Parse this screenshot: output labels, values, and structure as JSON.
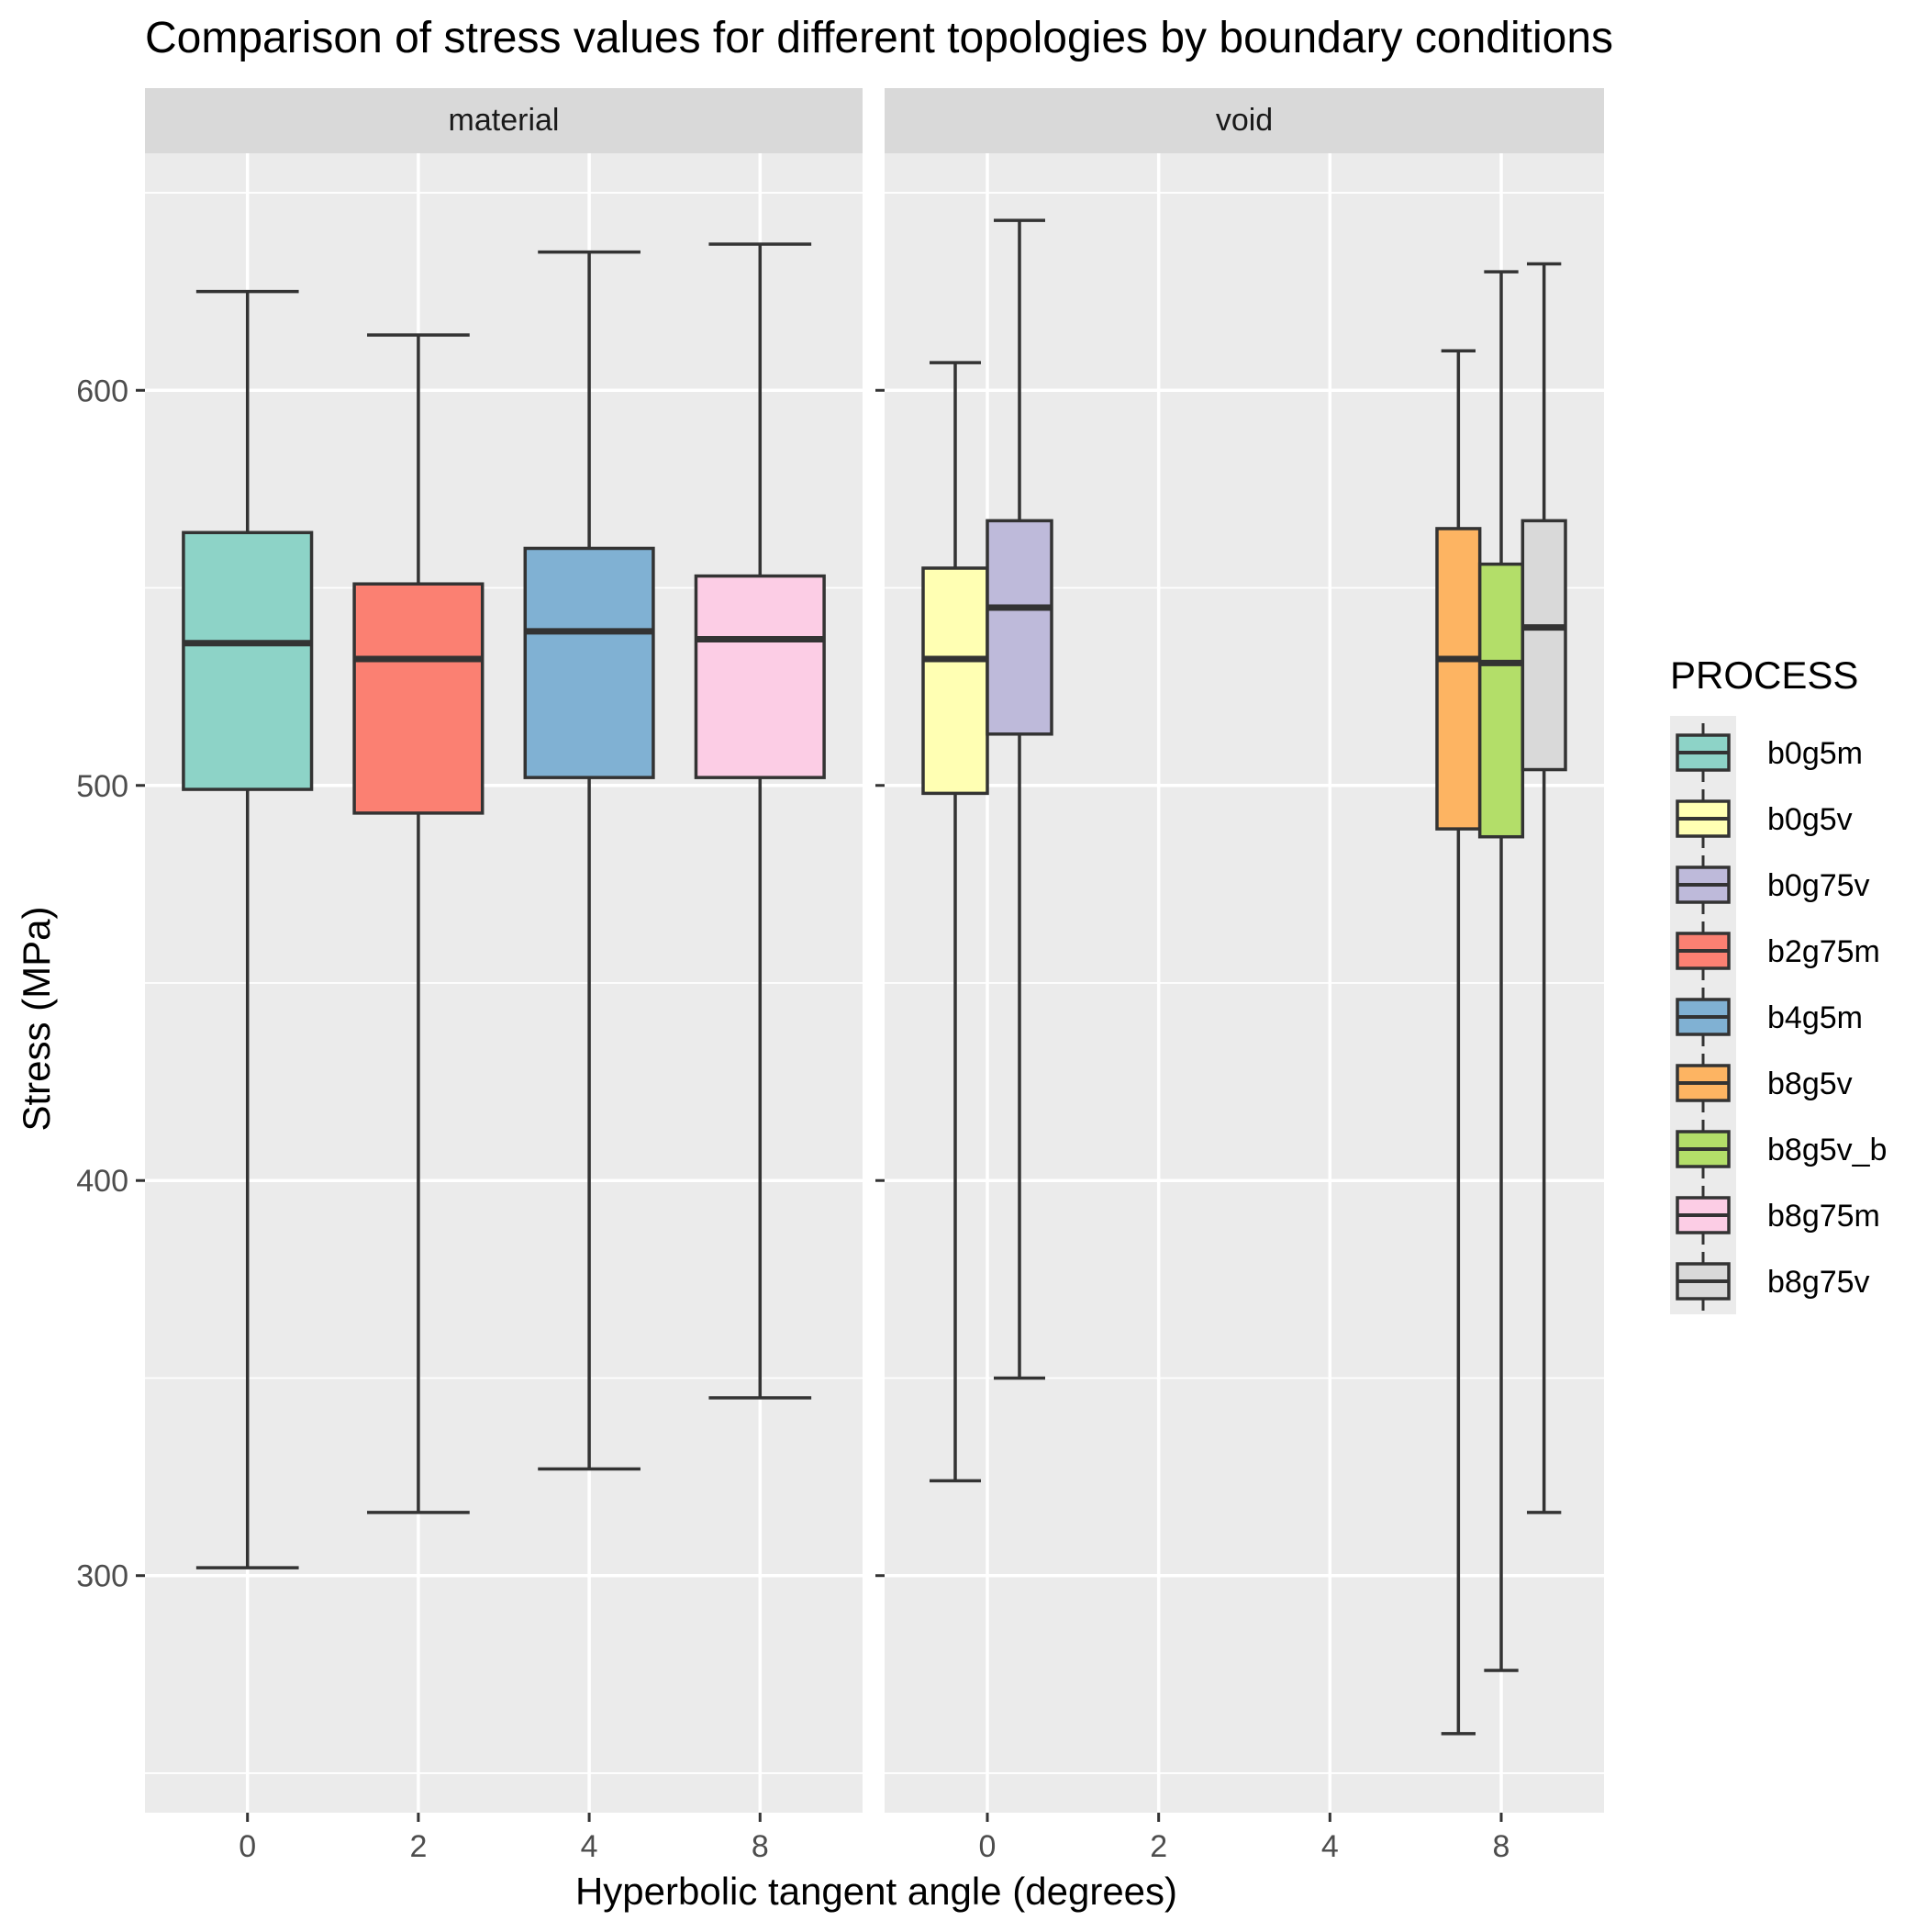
{
  "chart_data": {
    "type": "boxplot",
    "title": "Comparison of stress values for different topologies by boundary conditions",
    "xlabel": "Hyperbolic tangent angle (degrees)",
    "ylabel": "Stress (MPa)",
    "ylim": [
      240,
      660
    ],
    "yticks": [
      300,
      400,
      500,
      600
    ],
    "x_categories": [
      "0",
      "2",
      "4",
      "8"
    ],
    "grid": true,
    "legend": {
      "title": "PROCESS",
      "position": "right",
      "entries": [
        {
          "name": "b0g5m",
          "color": "#8DD3C7"
        },
        {
          "name": "b0g5v",
          "color": "#FFFFB3"
        },
        {
          "name": "b0g75v",
          "color": "#BEBADA"
        },
        {
          "name": "b2g75m",
          "color": "#FB8072"
        },
        {
          "name": "b4g5m",
          "color": "#80B1D3"
        },
        {
          "name": "b8g5v",
          "color": "#FDB462"
        },
        {
          "name": "b8g5v_b",
          "color": "#B3DE69"
        },
        {
          "name": "b8g75m",
          "color": "#FCCDE5"
        },
        {
          "name": "b8g75v",
          "color": "#D9D9D9"
        }
      ]
    },
    "facets": [
      {
        "label": "material",
        "boxes": [
          {
            "process": "b0g5m",
            "x": "0",
            "min": 302,
            "q1": 499,
            "median": 536,
            "q3": 564,
            "max": 625
          },
          {
            "process": "b2g75m",
            "x": "2",
            "min": 316,
            "q1": 493,
            "median": 532,
            "q3": 551,
            "max": 614
          },
          {
            "process": "b4g5m",
            "x": "4",
            "min": 327,
            "q1": 502,
            "median": 539,
            "q3": 560,
            "max": 635
          },
          {
            "process": "b8g75m",
            "x": "8",
            "min": 345,
            "q1": 502,
            "median": 537,
            "q3": 553,
            "max": 637
          }
        ]
      },
      {
        "label": "void",
        "boxes": [
          {
            "process": "b0g5v",
            "x": "0",
            "min": 324,
            "q1": 498,
            "median": 532,
            "q3": 555,
            "max": 607
          },
          {
            "process": "b0g75v",
            "x": "0",
            "min": 350,
            "q1": 513,
            "median": 545,
            "q3": 567,
            "max": 643
          },
          {
            "process": "b8g5v",
            "x": "8",
            "min": 260,
            "q1": 489,
            "median": 532,
            "q3": 565,
            "max": 610
          },
          {
            "process": "b8g5v_b",
            "x": "8",
            "min": 276,
            "q1": 487,
            "median": 531,
            "q3": 556,
            "max": 630
          },
          {
            "process": "b8g75v",
            "x": "8",
            "min": 316,
            "q1": 504,
            "median": 540,
            "q3": 567,
            "max": 632
          }
        ]
      }
    ]
  }
}
